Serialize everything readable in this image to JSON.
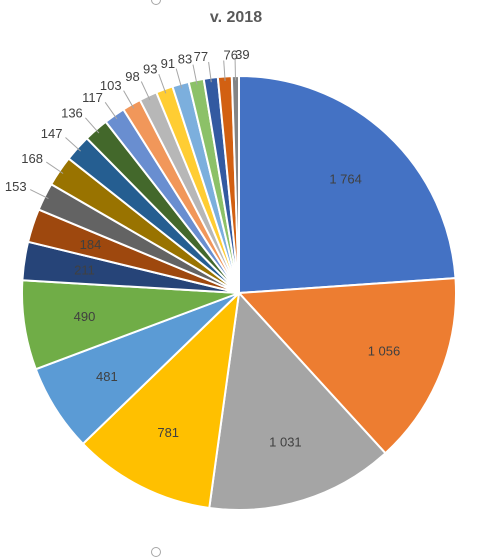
{
  "chart_data": {
    "type": "pie",
    "title": "v. 2018",
    "slices": [
      {
        "value": 1764,
        "label": "1 764",
        "color": "#4472C4"
      },
      {
        "value": 1056,
        "label": "1 056",
        "color": "#ED7D31"
      },
      {
        "value": 1031,
        "label": "1 031",
        "color": "#A5A5A5"
      },
      {
        "value": 781,
        "label": "781",
        "color": "#FFC000"
      },
      {
        "value": 481,
        "label": "481",
        "color": "#5B9BD5"
      },
      {
        "value": 490,
        "label": "490",
        "color": "#70AD47"
      },
      {
        "value": 211,
        "label": "211",
        "color": "#264478"
      },
      {
        "value": 184,
        "label": "184",
        "color": "#9E480E"
      },
      {
        "value": 153,
        "label": "153",
        "color": "#636363"
      },
      {
        "value": 168,
        "label": "168",
        "color": "#997300"
      },
      {
        "value": 147,
        "label": "147",
        "color": "#255E91"
      },
      {
        "value": 136,
        "label": "136",
        "color": "#43682B"
      },
      {
        "value": 117,
        "label": "117",
        "color": "#698ED0"
      },
      {
        "value": 103,
        "label": "103",
        "color": "#F1975A"
      },
      {
        "value": 98,
        "label": "98",
        "color": "#B7B7B7"
      },
      {
        "value": 93,
        "label": "93",
        "color": "#FFCD33"
      },
      {
        "value": 91,
        "label": "91",
        "color": "#7CAFDD"
      },
      {
        "value": 83,
        "label": "83",
        "color": "#8CC168"
      },
      {
        "value": 77,
        "label": "77",
        "color": "#335AA1"
      },
      {
        "value": 76,
        "label": "76",
        "color": "#D26012"
      },
      {
        "value": 39,
        "label": "39",
        "color": "#848484"
      }
    ]
  }
}
